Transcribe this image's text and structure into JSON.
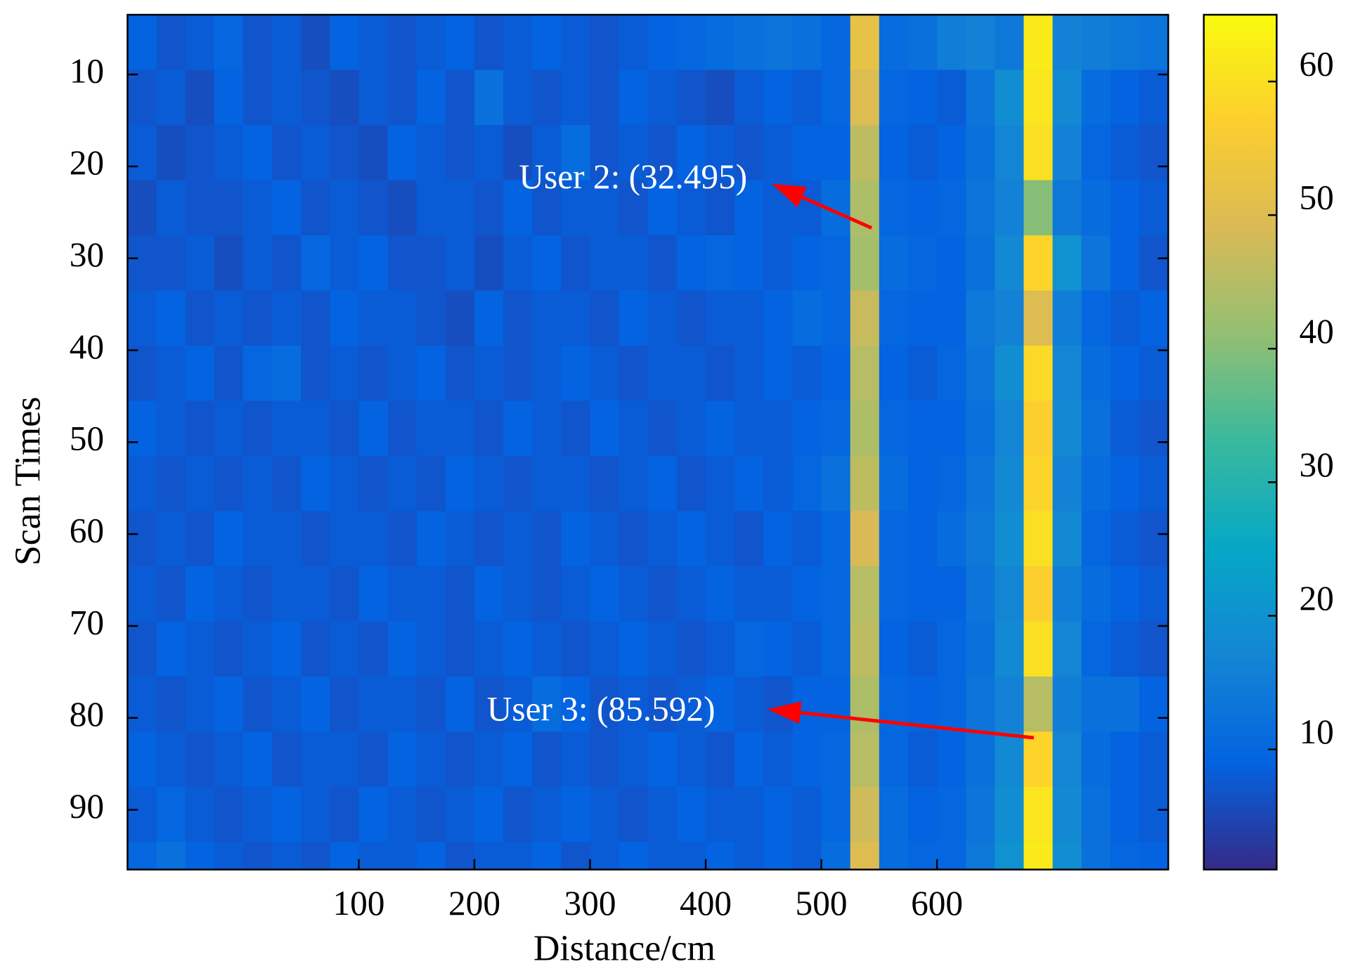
{
  "chart_data": {
    "type": "heatmap",
    "xlabel": "Distance/cm",
    "ylabel": "Scan Times",
    "xlim": [
      -100,
      800
    ],
    "ylim": [
      3.5,
      96.5
    ],
    "y_reversed": true,
    "xticks": [
      100,
      200,
      300,
      400,
      500,
      600
    ],
    "yticks": [
      10,
      20,
      30,
      40,
      50,
      60,
      70,
      80,
      90
    ],
    "clim": [
      1,
      65
    ],
    "cticks": [
      10,
      20,
      30,
      40,
      50,
      60
    ],
    "colormap": [
      "#352a87",
      "#0363e1",
      "#1485d4",
      "#06a7c6",
      "#38b99e",
      "#92bf73",
      "#d9ba56",
      "#fcce2e",
      "#f9fb0e"
    ],
    "xbins": [
      -100,
      -75,
      -50,
      -25,
      0,
      25,
      50,
      75,
      100,
      125,
      150,
      175,
      200,
      225,
      250,
      275,
      300,
      325,
      350,
      375,
      400,
      425,
      450,
      475,
      500,
      525,
      550,
      575,
      600,
      625,
      650,
      675,
      700,
      725,
      750,
      775,
      800
    ],
    "ybins": [
      3.5,
      9.5,
      15.5,
      21.5,
      27.5,
      33.5,
      39.5,
      45.5,
      51.5,
      57.5,
      63.5,
      69.5,
      75.5,
      81.5,
      87.5,
      93.5,
      96.5
    ],
    "z": [
      [
        9,
        7,
        8,
        10,
        7,
        8,
        6,
        9,
        8,
        7,
        8,
        9,
        7,
        8,
        9,
        8,
        7,
        8,
        9,
        10,
        11,
        12,
        13,
        12,
        10,
        52,
        11,
        12,
        15,
        16,
        14,
        62,
        16,
        15,
        14,
        13
      ],
      [
        7,
        8,
        6,
        9,
        7,
        8,
        7,
        6,
        8,
        7,
        9,
        7,
        12,
        8,
        7,
        8,
        7,
        9,
        8,
        7,
        6,
        8,
        9,
        8,
        10,
        50,
        10,
        9,
        8,
        13,
        19,
        61,
        18,
        11,
        9,
        8
      ],
      [
        8,
        6,
        7,
        8,
        9,
        7,
        8,
        7,
        6,
        9,
        8,
        7,
        8,
        6,
        8,
        11,
        7,
        8,
        7,
        9,
        8,
        7,
        8,
        9,
        9,
        46,
        9,
        8,
        9,
        12,
        17,
        60,
        16,
        10,
        8,
        7
      ],
      [
        6,
        8,
        7,
        7,
        8,
        9,
        7,
        8,
        7,
        6,
        8,
        8,
        7,
        9,
        7,
        8,
        8,
        7,
        9,
        8,
        7,
        9,
        8,
        8,
        11,
        44,
        10,
        9,
        10,
        13,
        16,
        40,
        14,
        11,
        9,
        8
      ],
      [
        7,
        7,
        8,
        6,
        8,
        7,
        10,
        8,
        9,
        7,
        7,
        8,
        6,
        8,
        9,
        7,
        8,
        8,
        7,
        9,
        10,
        9,
        8,
        9,
        10,
        43,
        11,
        10,
        9,
        12,
        18,
        58,
        20,
        13,
        9,
        7
      ],
      [
        8,
        9,
        7,
        8,
        7,
        8,
        7,
        9,
        8,
        8,
        7,
        6,
        9,
        7,
        8,
        8,
        7,
        9,
        8,
        7,
        8,
        8,
        9,
        11,
        10,
        47,
        10,
        9,
        9,
        14,
        16,
        50,
        15,
        10,
        8,
        9
      ],
      [
        7,
        8,
        9,
        7,
        10,
        11,
        7,
        8,
        7,
        8,
        9,
        7,
        8,
        7,
        8,
        9,
        8,
        7,
        8,
        8,
        7,
        8,
        9,
        8,
        9,
        45,
        9,
        8,
        10,
        13,
        19,
        59,
        17,
        11,
        9,
        8
      ],
      [
        9,
        8,
        7,
        8,
        7,
        8,
        8,
        7,
        9,
        7,
        8,
        8,
        7,
        9,
        8,
        7,
        9,
        8,
        7,
        8,
        9,
        8,
        8,
        9,
        10,
        44,
        10,
        9,
        9,
        12,
        17,
        57,
        18,
        12,
        8,
        7
      ],
      [
        8,
        7,
        8,
        7,
        8,
        7,
        9,
        8,
        7,
        8,
        7,
        9,
        8,
        7,
        8,
        8,
        7,
        8,
        9,
        7,
        8,
        9,
        8,
        10,
        12,
        46,
        11,
        9,
        10,
        13,
        18,
        58,
        16,
        11,
        9,
        8
      ],
      [
        7,
        8,
        7,
        9,
        8,
        8,
        7,
        8,
        8,
        7,
        9,
        8,
        7,
        8,
        7,
        9,
        8,
        7,
        8,
        9,
        8,
        7,
        9,
        8,
        10,
        49,
        10,
        9,
        11,
        14,
        19,
        60,
        18,
        10,
        8,
        7
      ],
      [
        8,
        7,
        9,
        8,
        7,
        8,
        8,
        7,
        9,
        8,
        8,
        7,
        9,
        8,
        7,
        8,
        9,
        8,
        7,
        8,
        9,
        8,
        8,
        9,
        10,
        45,
        10,
        9,
        9,
        13,
        17,
        57,
        15,
        11,
        9,
        8
      ],
      [
        7,
        9,
        8,
        7,
        8,
        9,
        7,
        8,
        7,
        9,
        8,
        7,
        8,
        9,
        8,
        7,
        8,
        9,
        8,
        7,
        8,
        10,
        9,
        8,
        10,
        46,
        9,
        8,
        10,
        12,
        18,
        60,
        17,
        10,
        8,
        7
      ],
      [
        8,
        7,
        8,
        9,
        7,
        8,
        9,
        7,
        8,
        8,
        7,
        9,
        7,
        8,
        11,
        9,
        7,
        8,
        7,
        8,
        9,
        8,
        7,
        9,
        9,
        44,
        10,
        9,
        10,
        13,
        16,
        45,
        15,
        12,
        12,
        9
      ],
      [
        9,
        8,
        7,
        8,
        9,
        7,
        8,
        8,
        7,
        9,
        8,
        7,
        8,
        9,
        7,
        8,
        7,
        8,
        9,
        8,
        7,
        9,
        8,
        9,
        10,
        45,
        10,
        8,
        9,
        12,
        18,
        58,
        17,
        11,
        9,
        8
      ],
      [
        8,
        10,
        8,
        7,
        8,
        9,
        8,
        7,
        9,
        8,
        7,
        8,
        9,
        7,
        8,
        9,
        8,
        7,
        8,
        9,
        8,
        8,
        9,
        8,
        10,
        48,
        11,
        9,
        10,
        13,
        19,
        61,
        18,
        12,
        9,
        8
      ],
      [
        10,
        12,
        9,
        8,
        7,
        8,
        7,
        9,
        8,
        8,
        9,
        7,
        8,
        8,
        9,
        7,
        8,
        9,
        8,
        8,
        9,
        8,
        9,
        8,
        11,
        50,
        11,
        10,
        10,
        14,
        20,
        62,
        19,
        12,
        10,
        9
      ]
    ],
    "annotations": [
      {
        "text": "User 2: (32.495)"
      },
      {
        "text": "User 3: (85.592)"
      }
    ],
    "annotation_color": "#ff0000"
  }
}
